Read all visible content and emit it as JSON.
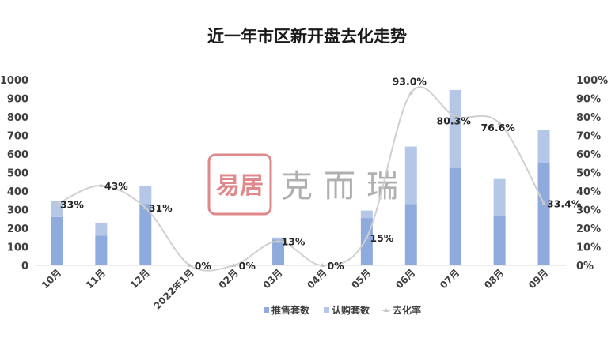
{
  "chart_data": {
    "type": "bar",
    "title": "近一年市区新开盘去化走势",
    "categories": [
      "10月",
      "11月",
      "12月",
      "2022年1月",
      "02月",
      "03月",
      "04月",
      "05月",
      "06月",
      "07月",
      "08月",
      "09月"
    ],
    "series": [
      {
        "name": "推售套数",
        "kind": "bar-stack",
        "color": "#8faadc",
        "values": [
          260,
          160,
          330,
          0,
          0,
          140,
          0,
          255,
          330,
          525,
          265,
          550
        ]
      },
      {
        "name": "认购套数",
        "kind": "bar-stack",
        "color": "#b4c7e7",
        "values": [
          85,
          70,
          100,
          0,
          0,
          10,
          0,
          40,
          310,
          420,
          200,
          180
        ]
      },
      {
        "name": "去化率",
        "kind": "line",
        "axis": "right",
        "color": "#d0d0d0",
        "values": [
          33,
          43,
          31,
          0,
          0,
          13,
          0,
          15,
          93,
          80.3,
          76.6,
          33.4
        ],
        "labels": [
          "33%",
          "43%",
          "31%",
          "0%",
          "0%",
          "13%",
          "0%",
          "15%",
          "93.0%",
          "80.3%",
          "76.6%",
          "33.4%"
        ]
      }
    ],
    "y_left": {
      "min": 0,
      "max": 1000,
      "step": 100,
      "ticks": [
        "0",
        "100",
        "200",
        "300",
        "400",
        "500",
        "600",
        "700",
        "800",
        "900",
        "1000"
      ]
    },
    "y_right": {
      "min": 0,
      "max": 100,
      "step": 10,
      "ticks": [
        "0%",
        "10%",
        "20%",
        "30%",
        "40%",
        "50%",
        "60%",
        "70%",
        "80%",
        "90%",
        "100%"
      ]
    },
    "legend": {
      "position": "bottom",
      "items": [
        "推售套数",
        "认购套数",
        "去化率"
      ]
    },
    "grid": false
  },
  "watermark": {
    "seal_text": "易居",
    "brand_text": "克而瑞",
    "color": "#e0898c"
  }
}
